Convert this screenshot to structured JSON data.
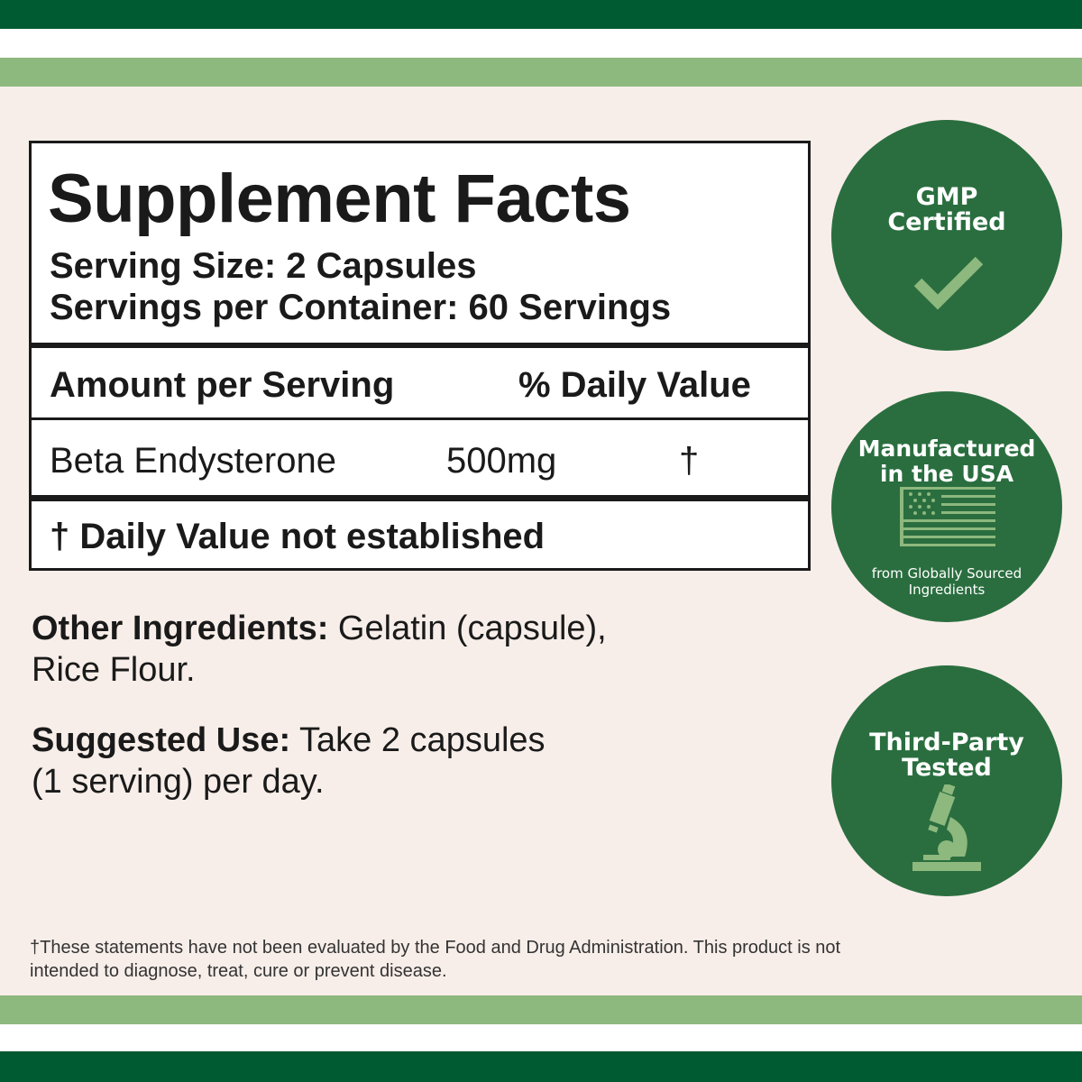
{
  "colors": {
    "dark_green": "#005a32",
    "light_green": "#8db87e",
    "badge_green": "#2a6e3f",
    "background": "#f8eee9"
  },
  "facts": {
    "title": "Supplement Facts",
    "serving_size": "Serving Size: 2 Capsules",
    "servings_per_container": "Servings per Container: 60 Servings",
    "header_amount": "Amount per Serving",
    "header_dv": "% Daily Value",
    "rows": [
      {
        "name": "Beta Endysterone",
        "amount": "500mg",
        "dv": "†"
      }
    ],
    "footnote": "† Daily Value not established"
  },
  "other_ingredients": {
    "label": "Other Ingredients:",
    "text": " Gelatin (capsule),",
    "text2": "Rice Flour."
  },
  "suggested_use": {
    "label": "Suggested Use:",
    "text": " Take 2 capsules",
    "text2": "(1 serving) per day."
  },
  "badges": [
    {
      "line1": "GMP",
      "line2": "Certified",
      "icon": "checkmark-icon"
    },
    {
      "line1": "Manufactured",
      "line2": "in the USA",
      "sub1": "from Globally Sourced",
      "sub2": "Ingredients",
      "icon": "us-flag-icon"
    },
    {
      "line1": "Third-Party",
      "line2": "Tested",
      "icon": "microscope-icon"
    }
  ],
  "disclaimer": {
    "line1": "†These statements have not been evaluated by the Food and Drug Administration. This product is not",
    "line2": "intended to diagnose, treat, cure or prevent disease."
  }
}
